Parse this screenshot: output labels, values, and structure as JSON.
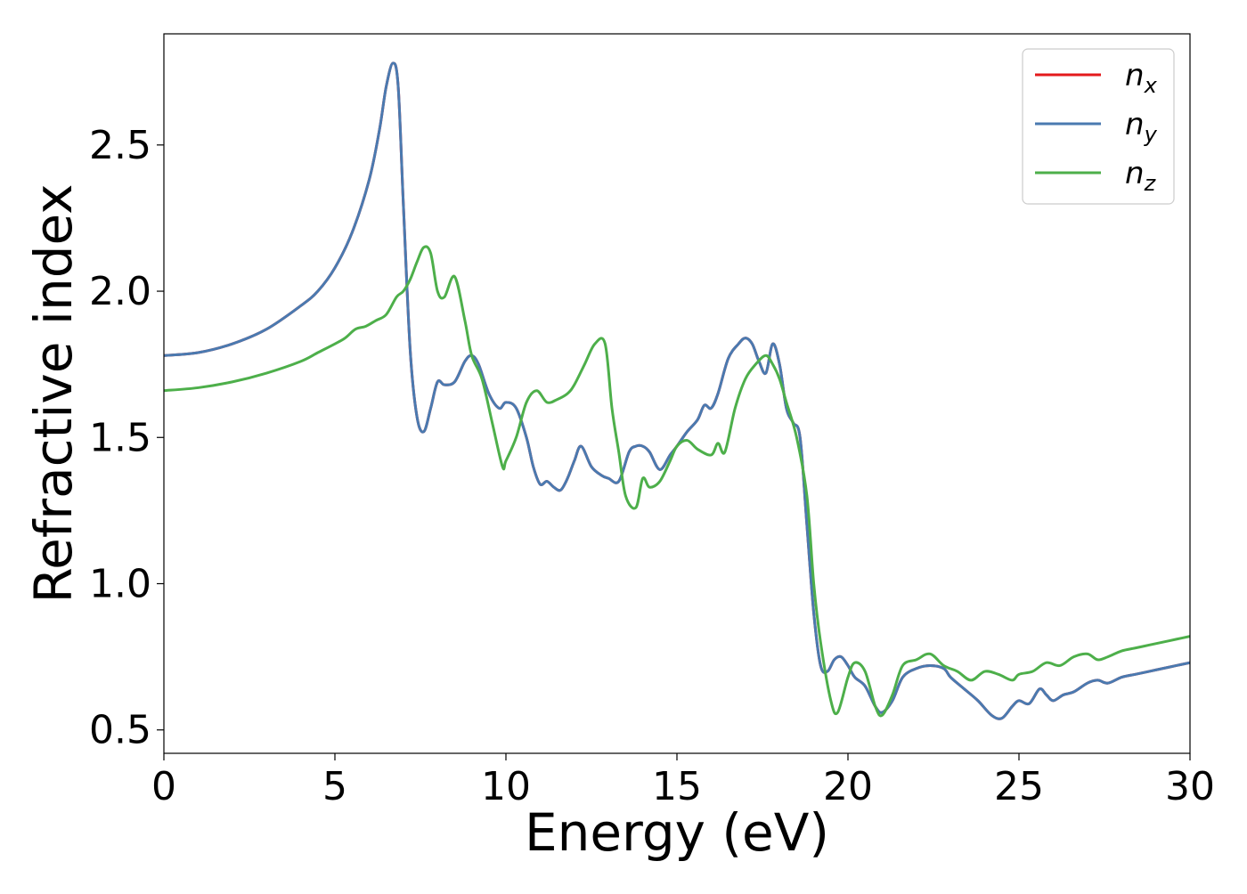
{
  "chart_data": {
    "type": "line",
    "title": "",
    "xlabel": "Energy (eV)",
    "ylabel": "Refractive index",
    "xlim": [
      0,
      30
    ],
    "ylim": [
      0.42,
      2.88
    ],
    "xticks": [
      0,
      5,
      10,
      15,
      20,
      25,
      30
    ],
    "yticks": [
      0.5,
      1.0,
      1.5,
      2.0,
      2.5
    ],
    "xtick_labels": [
      "0",
      "5",
      "10",
      "15",
      "20",
      "25",
      "30"
    ],
    "ytick_labels": [
      "0.5",
      "1.0",
      "1.5",
      "2.0",
      "2.5"
    ],
    "grid": false,
    "legend_position": "top-right",
    "series": [
      {
        "name": "n",
        "subscript": "x",
        "color": "#e41a1c",
        "x": [
          0,
          1,
          2,
          3,
          4,
          4.5,
          5,
          5.5,
          6,
          6.3,
          6.5,
          6.7,
          6.85,
          7.0,
          7.2,
          7.4,
          7.6,
          7.8,
          8.0,
          8.2,
          8.5,
          8.8,
          9.0,
          9.2,
          9.5,
          9.8,
          10.0,
          10.3,
          10.6,
          10.8,
          11.0,
          11.2,
          11.4,
          11.6,
          11.8,
          12.0,
          12.2,
          12.5,
          12.8,
          13.0,
          13.3,
          13.6,
          13.8,
          14.0,
          14.2,
          14.5,
          14.8,
          15.0,
          15.3,
          15.6,
          15.8,
          16.0,
          16.2,
          16.5,
          16.8,
          17.0,
          17.2,
          17.4,
          17.6,
          17.8,
          18.0,
          18.2,
          18.4,
          18.6,
          18.8,
          19.0,
          19.2,
          19.4,
          19.6,
          19.8,
          20.0,
          20.2,
          20.5,
          20.8,
          21.0,
          21.3,
          21.6,
          22.0,
          22.4,
          22.8,
          23.0,
          23.4,
          23.8,
          24.2,
          24.5,
          24.8,
          25.0,
          25.3,
          25.6,
          25.8,
          26.0,
          26.3,
          26.6,
          27.0,
          27.3,
          27.6,
          28.0,
          28.4,
          28.8,
          29.2,
          29.6,
          30
        ],
        "y": [
          1.78,
          1.79,
          1.82,
          1.87,
          1.95,
          2.0,
          2.08,
          2.2,
          2.38,
          2.55,
          2.7,
          2.78,
          2.7,
          2.3,
          1.8,
          1.57,
          1.52,
          1.6,
          1.69,
          1.68,
          1.69,
          1.76,
          1.78,
          1.75,
          1.65,
          1.6,
          1.62,
          1.6,
          1.5,
          1.4,
          1.34,
          1.35,
          1.33,
          1.32,
          1.36,
          1.42,
          1.47,
          1.4,
          1.37,
          1.36,
          1.35,
          1.45,
          1.47,
          1.47,
          1.45,
          1.39,
          1.44,
          1.47,
          1.52,
          1.56,
          1.61,
          1.6,
          1.65,
          1.77,
          1.82,
          1.84,
          1.82,
          1.76,
          1.72,
          1.82,
          1.75,
          1.6,
          1.55,
          1.5,
          1.2,
          0.9,
          0.72,
          0.7,
          0.74,
          0.75,
          0.72,
          0.68,
          0.65,
          0.58,
          0.56,
          0.6,
          0.68,
          0.71,
          0.72,
          0.71,
          0.68,
          0.64,
          0.6,
          0.55,
          0.54,
          0.58,
          0.6,
          0.59,
          0.64,
          0.62,
          0.6,
          0.62,
          0.63,
          0.66,
          0.67,
          0.66,
          0.68,
          0.69,
          0.7,
          0.71,
          0.72,
          0.73
        ]
      },
      {
        "name": "n",
        "subscript": "y",
        "color": "#4a7ab0",
        "x": [
          0,
          1,
          2,
          3,
          4,
          4.5,
          5,
          5.5,
          6,
          6.3,
          6.5,
          6.7,
          6.85,
          7.0,
          7.2,
          7.4,
          7.6,
          7.8,
          8.0,
          8.2,
          8.5,
          8.8,
          9.0,
          9.2,
          9.5,
          9.8,
          10.0,
          10.3,
          10.6,
          10.8,
          11.0,
          11.2,
          11.4,
          11.6,
          11.8,
          12.0,
          12.2,
          12.5,
          12.8,
          13.0,
          13.3,
          13.6,
          13.8,
          14.0,
          14.2,
          14.5,
          14.8,
          15.0,
          15.3,
          15.6,
          15.8,
          16.0,
          16.2,
          16.5,
          16.8,
          17.0,
          17.2,
          17.4,
          17.6,
          17.8,
          18.0,
          18.2,
          18.4,
          18.6,
          18.8,
          19.0,
          19.2,
          19.4,
          19.6,
          19.8,
          20.0,
          20.2,
          20.5,
          20.8,
          21.0,
          21.3,
          21.6,
          22.0,
          22.4,
          22.8,
          23.0,
          23.4,
          23.8,
          24.2,
          24.5,
          24.8,
          25.0,
          25.3,
          25.6,
          25.8,
          26.0,
          26.3,
          26.6,
          27.0,
          27.3,
          27.6,
          28.0,
          28.4,
          28.8,
          29.2,
          29.6,
          30
        ],
        "y": [
          1.78,
          1.79,
          1.82,
          1.87,
          1.95,
          2.0,
          2.08,
          2.2,
          2.38,
          2.55,
          2.7,
          2.78,
          2.7,
          2.3,
          1.8,
          1.57,
          1.52,
          1.6,
          1.69,
          1.68,
          1.69,
          1.76,
          1.78,
          1.75,
          1.65,
          1.6,
          1.62,
          1.6,
          1.5,
          1.4,
          1.34,
          1.35,
          1.33,
          1.32,
          1.36,
          1.42,
          1.47,
          1.4,
          1.37,
          1.36,
          1.35,
          1.45,
          1.47,
          1.47,
          1.45,
          1.39,
          1.44,
          1.47,
          1.52,
          1.56,
          1.61,
          1.6,
          1.65,
          1.77,
          1.82,
          1.84,
          1.82,
          1.76,
          1.72,
          1.82,
          1.75,
          1.6,
          1.55,
          1.5,
          1.2,
          0.9,
          0.72,
          0.7,
          0.74,
          0.75,
          0.72,
          0.68,
          0.65,
          0.58,
          0.56,
          0.6,
          0.68,
          0.71,
          0.72,
          0.71,
          0.68,
          0.64,
          0.6,
          0.55,
          0.54,
          0.58,
          0.6,
          0.59,
          0.64,
          0.62,
          0.6,
          0.62,
          0.63,
          0.66,
          0.67,
          0.66,
          0.68,
          0.69,
          0.7,
          0.71,
          0.72,
          0.73
        ]
      },
      {
        "name": "n",
        "subscript": "z",
        "color": "#4daf4a",
        "x": [
          0,
          1,
          2,
          3,
          4,
          4.5,
          5,
          5.3,
          5.6,
          5.9,
          6.2,
          6.5,
          6.8,
          7.0,
          7.2,
          7.4,
          7.6,
          7.8,
          8.0,
          8.2,
          8.5,
          8.8,
          9.0,
          9.3,
          9.6,
          9.9,
          10.0,
          10.3,
          10.6,
          10.9,
          11.2,
          11.5,
          11.8,
          12.0,
          12.3,
          12.6,
          12.9,
          13.1,
          13.3,
          13.5,
          13.8,
          14.0,
          14.2,
          14.5,
          14.8,
          15.0,
          15.3,
          15.6,
          16.0,
          16.2,
          16.4,
          16.7,
          17.0,
          17.3,
          17.6,
          17.8,
          18.0,
          18.2,
          18.5,
          18.8,
          19.0,
          19.2,
          19.5,
          19.7,
          20.0,
          20.2,
          20.5,
          20.8,
          21.0,
          21.3,
          21.6,
          22.0,
          22.4,
          22.8,
          23.2,
          23.6,
          24.0,
          24.4,
          24.8,
          25.0,
          25.4,
          25.8,
          26.2,
          26.6,
          27.0,
          27.3,
          27.6,
          28.0,
          28.4,
          28.8,
          29.2,
          29.6,
          30
        ],
        "y": [
          1.66,
          1.67,
          1.69,
          1.72,
          1.76,
          1.79,
          1.82,
          1.84,
          1.87,
          1.88,
          1.9,
          1.92,
          1.98,
          2.0,
          2.04,
          2.1,
          2.15,
          2.13,
          2.0,
          1.98,
          2.05,
          1.9,
          1.78,
          1.7,
          1.55,
          1.4,
          1.42,
          1.5,
          1.62,
          1.66,
          1.62,
          1.63,
          1.65,
          1.68,
          1.75,
          1.82,
          1.82,
          1.6,
          1.45,
          1.3,
          1.26,
          1.36,
          1.33,
          1.35,
          1.42,
          1.47,
          1.49,
          1.46,
          1.44,
          1.48,
          1.45,
          1.6,
          1.7,
          1.75,
          1.78,
          1.75,
          1.7,
          1.62,
          1.5,
          1.3,
          1.0,
          0.8,
          0.6,
          0.56,
          0.68,
          0.73,
          0.7,
          0.58,
          0.55,
          0.62,
          0.72,
          0.74,
          0.76,
          0.72,
          0.7,
          0.67,
          0.7,
          0.69,
          0.67,
          0.69,
          0.7,
          0.73,
          0.72,
          0.75,
          0.76,
          0.74,
          0.75,
          0.77,
          0.78,
          0.79,
          0.8,
          0.81,
          0.82
        ]
      }
    ]
  }
}
